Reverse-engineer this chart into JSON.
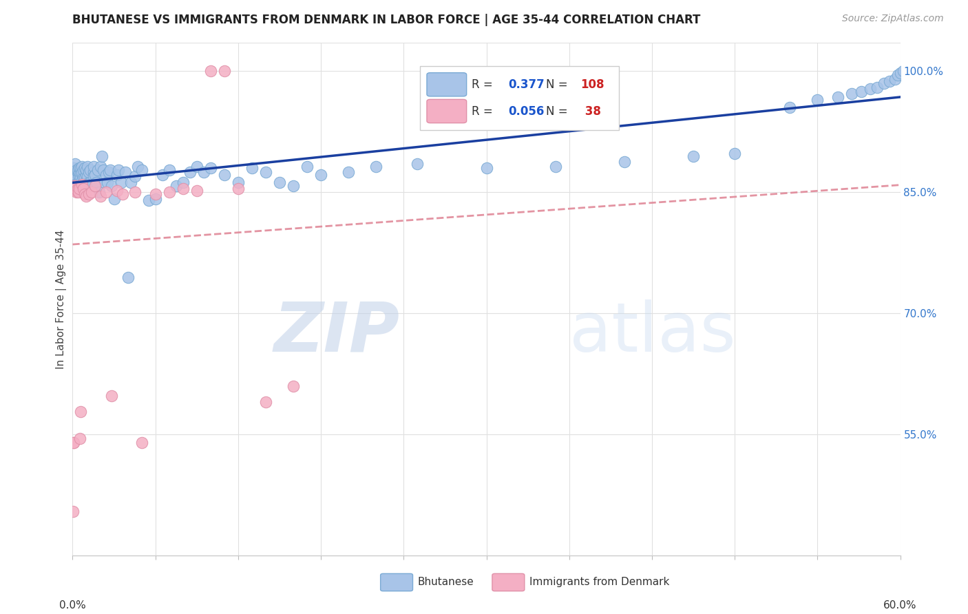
{
  "title": "BHUTANESE VS IMMIGRANTS FROM DENMARK IN LABOR FORCE | AGE 35-44 CORRELATION CHART",
  "source": "Source: ZipAtlas.com",
  "ylabel": "In Labor Force | Age 35-44",
  "xmin": 0.0,
  "xmax": 0.6,
  "ymin": 0.4,
  "ymax": 1.035,
  "yticks_right": [
    0.55,
    0.7,
    0.85,
    1.0
  ],
  "ytick_labels_right": [
    "55.0%",
    "70.0%",
    "85.0%",
    "100.0%"
  ],
  "watermark_zip": "ZIP",
  "watermark_atlas": "atlas",
  "blue_R_val": "0.377",
  "blue_N_val": "108",
  "pink_R_val": "0.056",
  "pink_N_val": " 38",
  "blue_dot_color": "#a8c4e8",
  "blue_dot_edge": "#7aaad4",
  "blue_line_color": "#1a3fa0",
  "pink_dot_color": "#f4afc4",
  "pink_dot_edge": "#e090a8",
  "pink_line_color": "#e08898",
  "background_color": "#ffffff",
  "grid_color": "#e0e0e0",
  "blue_scatter_x": [
    0.001,
    0.001,
    0.001,
    0.002,
    0.002,
    0.002,
    0.002,
    0.003,
    0.003,
    0.003,
    0.004,
    0.004,
    0.004,
    0.005,
    0.005,
    0.005,
    0.005,
    0.005,
    0.006,
    0.006,
    0.006,
    0.006,
    0.006,
    0.007,
    0.007,
    0.007,
    0.007,
    0.008,
    0.008,
    0.008,
    0.009,
    0.009,
    0.009,
    0.01,
    0.01,
    0.01,
    0.011,
    0.011,
    0.012,
    0.012,
    0.013,
    0.013,
    0.014,
    0.015,
    0.015,
    0.015,
    0.016,
    0.017,
    0.018,
    0.019,
    0.02,
    0.021,
    0.022,
    0.023,
    0.024,
    0.025,
    0.026,
    0.027,
    0.028,
    0.03,
    0.032,
    0.033,
    0.035,
    0.038,
    0.04,
    0.042,
    0.045,
    0.047,
    0.05,
    0.055,
    0.06,
    0.065,
    0.07,
    0.075,
    0.08,
    0.085,
    0.09,
    0.095,
    0.1,
    0.11,
    0.12,
    0.13,
    0.14,
    0.15,
    0.16,
    0.17,
    0.18,
    0.2,
    0.22,
    0.25,
    0.3,
    0.35,
    0.4,
    0.45,
    0.48,
    0.52,
    0.54,
    0.555,
    0.565,
    0.572,
    0.578,
    0.583,
    0.588,
    0.592,
    0.596,
    0.598,
    0.6,
    0.602
  ],
  "blue_scatter_y": [
    0.88,
    0.875,
    0.87,
    0.87,
    0.865,
    0.875,
    0.885,
    0.86,
    0.87,
    0.878,
    0.875,
    0.862,
    0.878,
    0.858,
    0.862,
    0.87,
    0.875,
    0.88,
    0.862,
    0.858,
    0.868,
    0.875,
    0.88,
    0.86,
    0.865,
    0.875,
    0.882,
    0.862,
    0.868,
    0.878,
    0.86,
    0.868,
    0.88,
    0.865,
    0.872,
    0.878,
    0.87,
    0.882,
    0.862,
    0.875,
    0.862,
    0.878,
    0.858,
    0.875,
    0.882,
    0.87,
    0.872,
    0.862,
    0.878,
    0.85,
    0.882,
    0.895,
    0.878,
    0.862,
    0.872,
    0.862,
    0.875,
    0.878,
    0.858,
    0.842,
    0.872,
    0.878,
    0.862,
    0.875,
    0.745,
    0.862,
    0.87,
    0.882,
    0.878,
    0.84,
    0.842,
    0.872,
    0.878,
    0.858,
    0.862,
    0.875,
    0.882,
    0.875,
    0.88,
    0.872,
    0.862,
    0.88,
    0.875,
    0.862,
    0.858,
    0.882,
    0.872,
    0.875,
    0.882,
    0.885,
    0.88,
    0.882,
    0.888,
    0.895,
    0.898,
    0.955,
    0.965,
    0.968,
    0.972,
    0.975,
    0.978,
    0.98,
    0.985,
    0.988,
    0.99,
    0.995,
    0.998,
    1.0
  ],
  "pink_scatter_x": [
    0.0005,
    0.0008,
    0.001,
    0.0012,
    0.0015,
    0.0018,
    0.002,
    0.0025,
    0.003,
    0.0035,
    0.004,
    0.0045,
    0.005,
    0.0055,
    0.006,
    0.007,
    0.008,
    0.009,
    0.01,
    0.012,
    0.014,
    0.016,
    0.02,
    0.024,
    0.028,
    0.032,
    0.036,
    0.045,
    0.05,
    0.06,
    0.07,
    0.08,
    0.09,
    0.1,
    0.11,
    0.12,
    0.14,
    0.16
  ],
  "pink_scatter_y": [
    0.455,
    0.54,
    0.54,
    0.858,
    0.858,
    0.858,
    0.855,
    0.852,
    0.85,
    0.852,
    0.855,
    0.85,
    0.855,
    0.545,
    0.578,
    0.86,
    0.855,
    0.848,
    0.845,
    0.848,
    0.85,
    0.858,
    0.845,
    0.85,
    0.598,
    0.852,
    0.848,
    0.85,
    0.54,
    0.848,
    0.85,
    0.855,
    0.852,
    1.0,
    1.0,
    0.855,
    0.59,
    0.61
  ]
}
